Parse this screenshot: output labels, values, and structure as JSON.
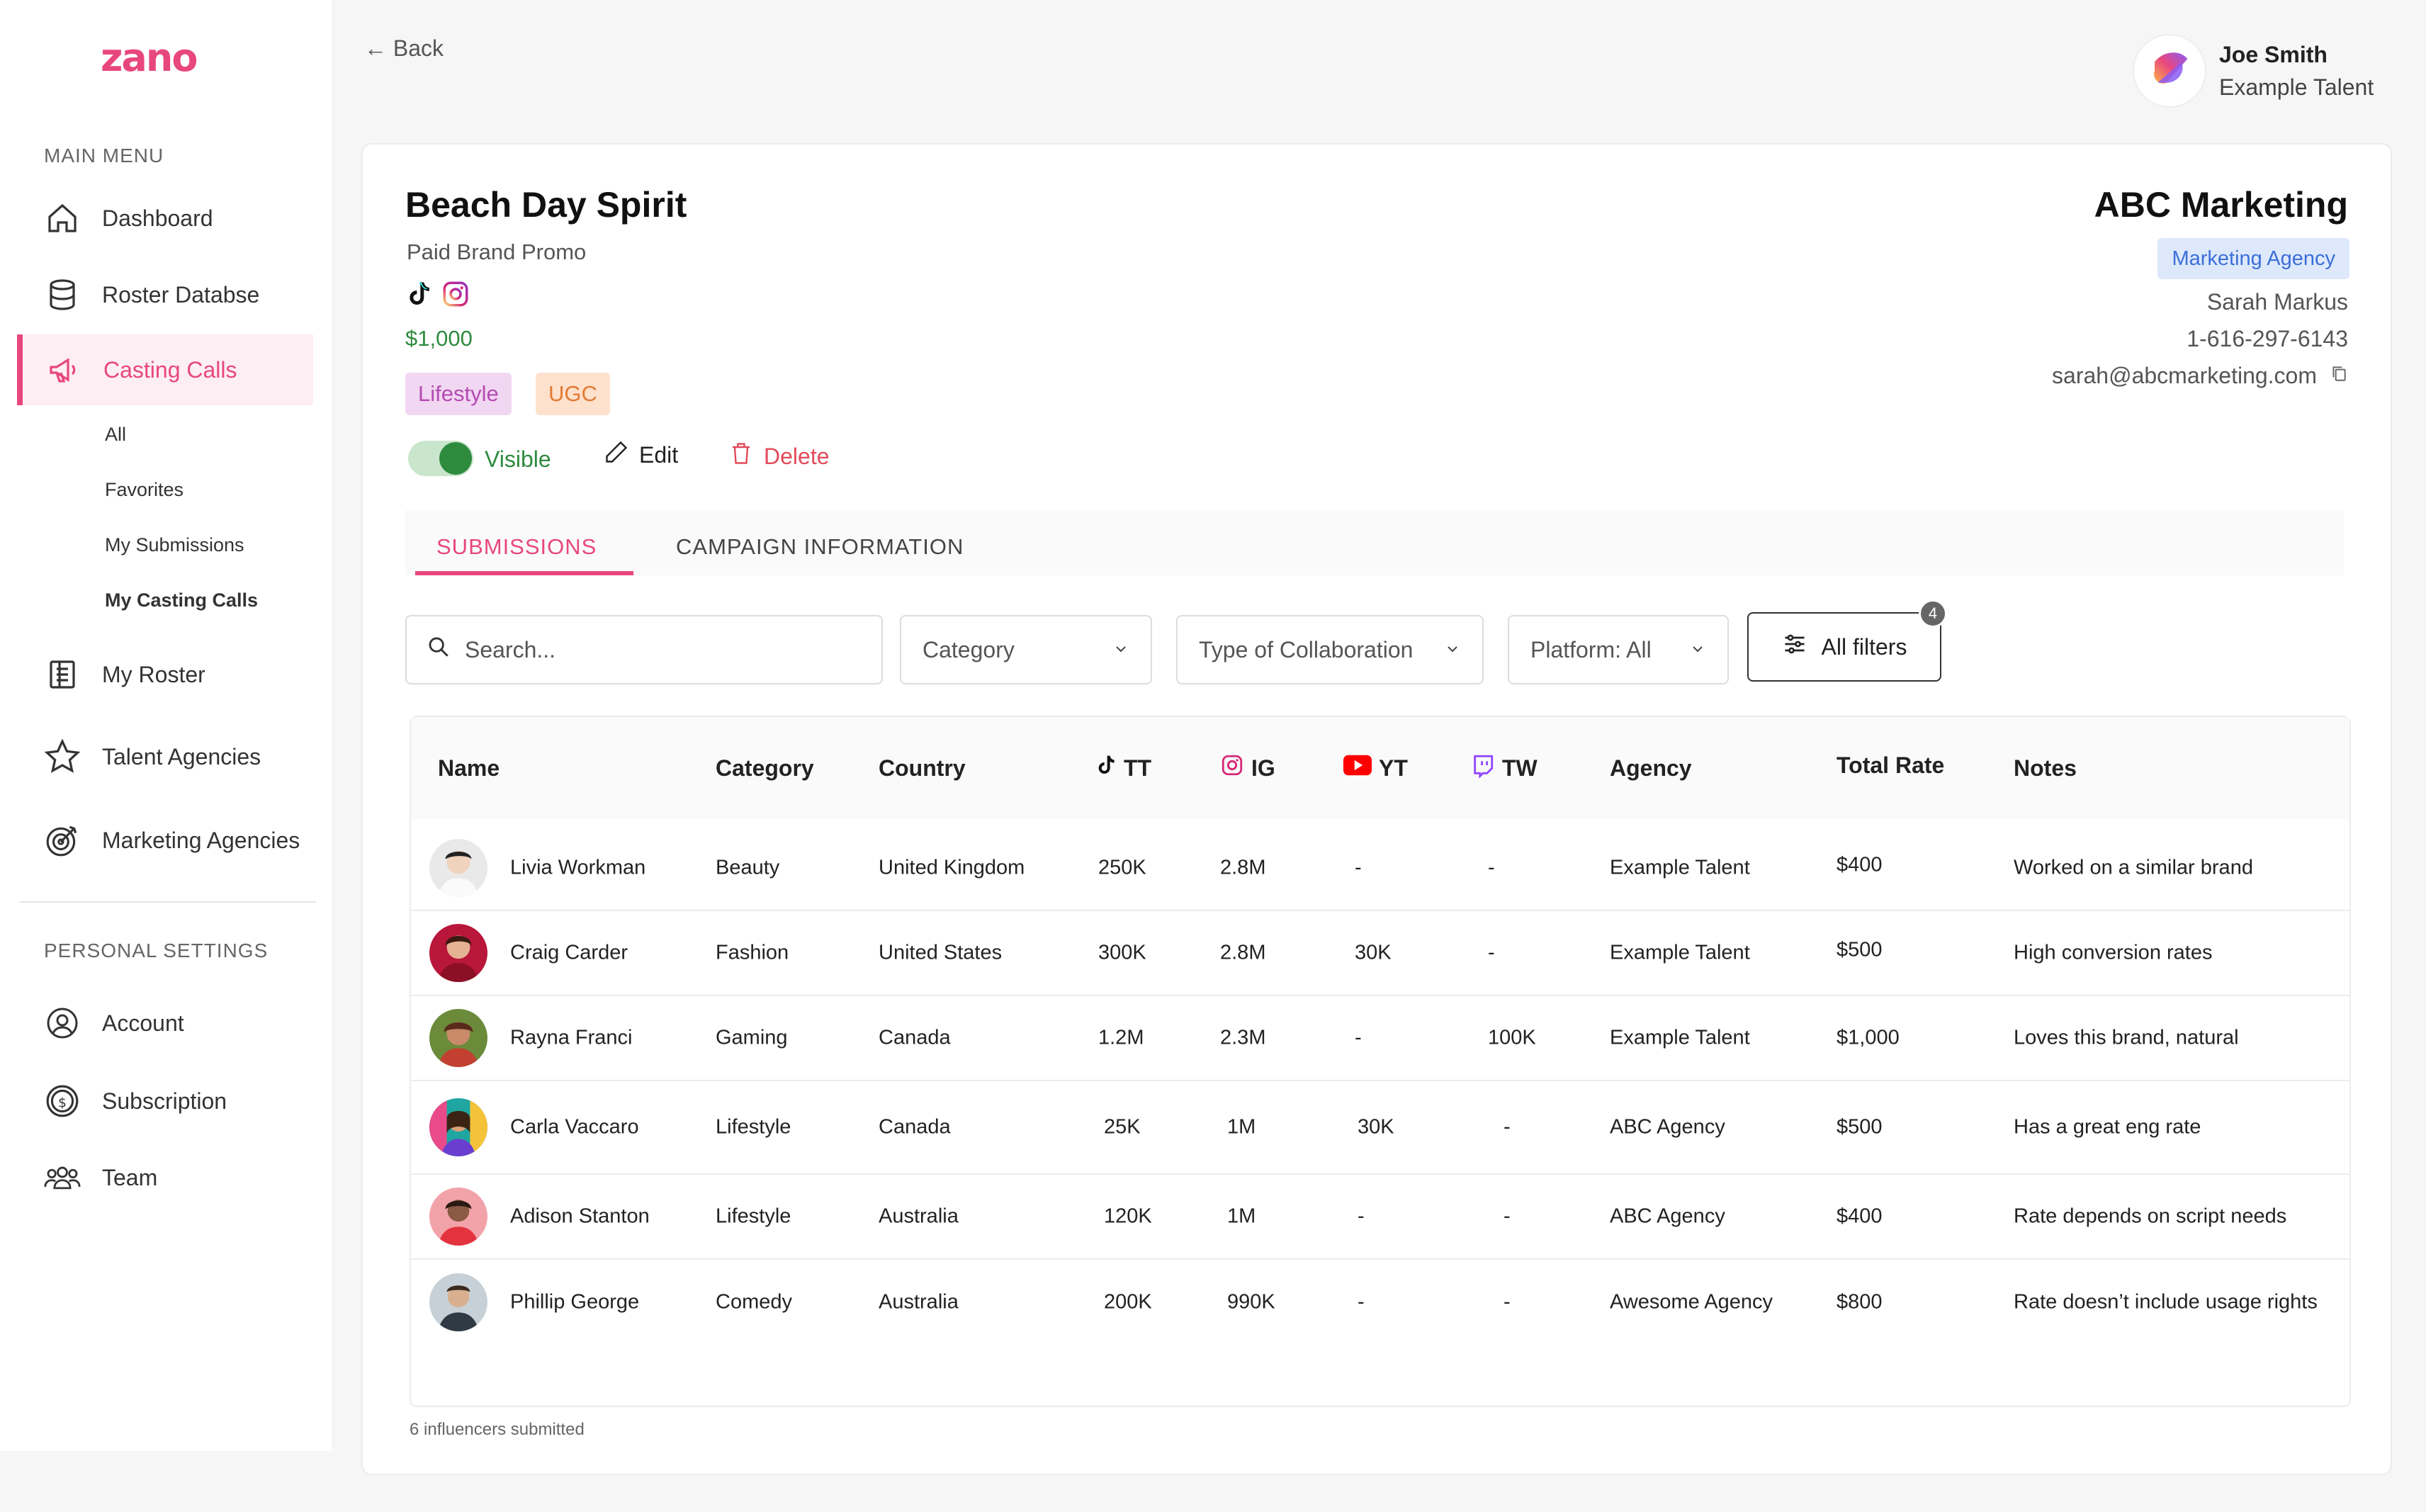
{
  "brand": {
    "logo": "zano",
    "accent": "#e8477d"
  },
  "sidebar": {
    "main_menu_title": "MAIN MENU",
    "items": [
      {
        "label": "Dashboard",
        "icon": "home-icon"
      },
      {
        "label": "Roster Databse",
        "icon": "database-icon"
      },
      {
        "label": "Casting Calls",
        "icon": "megaphone-icon",
        "active": true
      },
      {
        "label": "My Roster",
        "icon": "roster-icon"
      },
      {
        "label": "Talent Agencies",
        "icon": "star-icon"
      },
      {
        "label": "Marketing Agencies",
        "icon": "target-icon"
      }
    ],
    "sub_items": [
      "All",
      "Favorites",
      "My Submissions",
      "My Casting Calls"
    ],
    "personal_title": "PERSONAL SETTINGS",
    "personal_items": [
      {
        "label": "Account",
        "icon": "account-icon"
      },
      {
        "label": "Subscription",
        "icon": "subscription-icon"
      },
      {
        "label": "Team",
        "icon": "team-icon"
      }
    ]
  },
  "header": {
    "back_label": "← Back",
    "user_name": "Joe Smith",
    "user_role": "Example Talent"
  },
  "campaign": {
    "title": "Beach Day Spirit",
    "type": "Paid Brand Promo",
    "price": "$1,000",
    "tags": [
      "Lifestyle",
      "UGC"
    ],
    "visible_label": "Visible",
    "edit_label": "Edit",
    "delete_label": "Delete"
  },
  "company": {
    "name": "ABC Marketing",
    "tag": "Marketing Agency",
    "contact_name": "Sarah Markus",
    "phone": "1-616-297-6143",
    "email": "sarah@abcmarketing.com"
  },
  "tabs": {
    "submissions": "SUBMISSIONS",
    "campaign_info": "CAMPAIGN INFORMATION"
  },
  "filters": {
    "search_placeholder": "Search...",
    "category": "Category",
    "collab": "Type of Collaboration",
    "platform": "Platform: All",
    "all_filters": "All filters",
    "count": "4"
  },
  "table": {
    "headers": {
      "name": "Name",
      "category": "Category",
      "country": "Country",
      "tt": "TT",
      "ig": "IG",
      "yt": "YT",
      "tw": "TW",
      "agency": "Agency",
      "rate": "Total Rate",
      "notes": "Notes"
    },
    "rows": [
      {
        "name": "Livia Workman",
        "category": "Beauty",
        "country": "United Kingdom",
        "tt": "250K",
        "ig": "2.8M",
        "yt": "-",
        "tw": "-",
        "agency": "Example Talent",
        "rate": "$400",
        "notes": "Worked on a similar brand"
      },
      {
        "name": "Craig Carder",
        "category": "Fashion",
        "country": "United States",
        "tt": "300K",
        "ig": "2.8M",
        "yt": "30K",
        "tw": "-",
        "agency": "Example Talent",
        "rate": "$500",
        "notes": "High conversion rates"
      },
      {
        "name": "Rayna Franci",
        "category": "Gaming",
        "country": "Canada",
        "tt": "1.2M",
        "ig": "2.3M",
        "yt": "-",
        "tw": "100K",
        "agency": "Example Talent",
        "rate": "$1,000",
        "notes": "Loves this brand, natural"
      },
      {
        "name": "Carla Vaccaro",
        "category": "Lifestyle",
        "country": "Canada",
        "tt": "25K",
        "ig": "1M",
        "yt": "30K",
        "tw": "-",
        "agency": "ABC Agency",
        "rate": "$500",
        "notes": "Has a great eng rate"
      },
      {
        "name": "Adison Stanton",
        "category": "Lifestyle",
        "country": "Australia",
        "tt": "120K",
        "ig": "1M",
        "yt": "-",
        "tw": "-",
        "agency": "ABC Agency",
        "rate": "$400",
        "notes": "Rate depends on script needs"
      },
      {
        "name": "Phillip George",
        "category": "Comedy",
        "country": "Australia",
        "tt": "200K",
        "ig": "990K",
        "yt": "-",
        "tw": "-",
        "agency": "Awesome Agency",
        "rate": "$800",
        "notes": "Rate doesn’t include usage rights"
      }
    ],
    "footer": "6 influencers submitted"
  }
}
